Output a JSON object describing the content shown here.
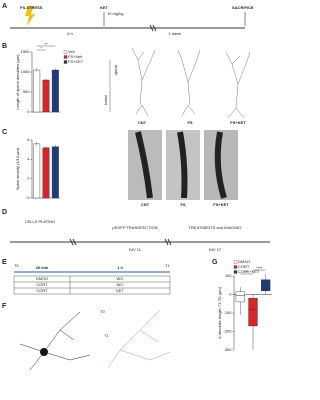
{
  "panels": [
    "A",
    "B",
    "C",
    "D",
    "E",
    "F",
    "G"
  ],
  "timeline_a": {
    "events": [
      "FS-STRESS",
      "KET",
      "SACRIFICE"
    ],
    "dose": "10 mg/kg",
    "intervals": [
      "6 h",
      "1 week"
    ]
  },
  "neurons_b": {
    "labels": [
      "apical",
      "basal"
    ],
    "groups": [
      "CNT",
      "FS",
      "FS+KET"
    ]
  },
  "images_c": {
    "groups": [
      "CNT",
      "FS",
      "FS+KET"
    ]
  },
  "timeline_d": {
    "events": [
      "CELLS PLATING",
      "pEGFP TRANSFECTION",
      "TREATMENTS and IMAGING"
    ],
    "days": [
      "DIV 11",
      "DIV 17"
    ]
  },
  "table_e": {
    "times": [
      "T0",
      "T1"
    ],
    "intervals": [
      "20 min",
      "1 h"
    ],
    "rows": [
      [
        "DMSO",
        "WO"
      ],
      [
        "CORT",
        "WO"
      ],
      [
        "CORT",
        "KET"
      ]
    ]
  },
  "tracing_f": {
    "times": [
      "T0",
      "T1"
    ]
  },
  "chart_data": [
    {
      "type": "bar",
      "y_label": "Length of apical dendrites (µm)",
      "ylim": [
        0,
        1500
      ],
      "yticks": [
        0,
        500,
        1000,
        1500
      ],
      "series": [
        {
          "name": "Veh",
          "color": "#ffffff",
          "values": [
            1050
          ],
          "errors": [
            40
          ]
        },
        {
          "name": "FS+Veh",
          "color": "#d7262b",
          "values": [
            800
          ],
          "errors": [
            30
          ]
        },
        {
          "name": "FS+KET",
          "color": "#1f3b78",
          "values": [
            1050
          ],
          "errors": [
            40
          ]
        }
      ],
      "annotations": [
        "*",
        "**"
      ]
    },
    {
      "type": "bar",
      "y_label": "Spine density (1/10 µm)",
      "ylim": [
        0,
        6
      ],
      "yticks": [
        0,
        2,
        4,
        6
      ],
      "series": [
        {
          "name": "Veh",
          "color": "#ffffff",
          "values": [
            5.6
          ],
          "errors": [
            0.2
          ]
        },
        {
          "name": "FS+Veh",
          "color": "#d7262b",
          "values": [
            5.2
          ],
          "errors": [
            0.15
          ]
        },
        {
          "name": "FS+KET",
          "color": "#1f3b78",
          "values": [
            5.3
          ],
          "errors": [
            0.2
          ]
        }
      ]
    },
    {
      "type": "box",
      "y_label": "Δ dendritic length T1-T0 (µm)",
      "ylim": [
        -300,
        100
      ],
      "yticks": [
        -300,
        -200,
        -100,
        0,
        100
      ],
      "series": [
        {
          "name": "DMSO",
          "color": "#ffffff",
          "values": [
            -110,
            -40,
            -5,
            15,
            40
          ]
        },
        {
          "name": "CORT",
          "color": "#d7262b",
          "values": [
            -300,
            -170,
            -80,
            -20,
            0
          ]
        },
        {
          "name": "CORT+KET",
          "color": "#1f3b78",
          "values": [
            0,
            20,
            55,
            80,
            110
          ]
        }
      ],
      "annotations": [
        "**",
        "****"
      ]
    }
  ]
}
